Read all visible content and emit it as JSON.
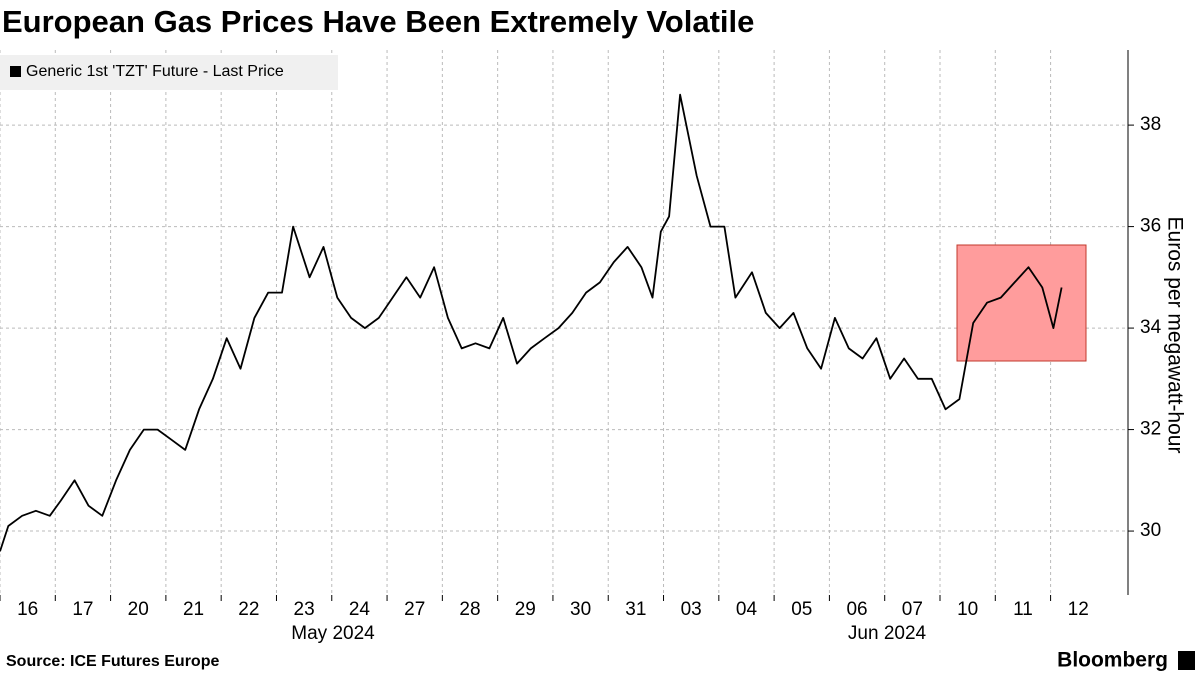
{
  "chart_data": {
    "type": "line",
    "title": "European Gas Prices Have Been Extremely Volatile",
    "y_label": "Euros per megawatt-hour",
    "source": "Source: ICE Futures Europe",
    "brand": "Bloomberg",
    "month_labels": [
      "May 2024",
      "Jun 2024"
    ],
    "xlim": [
      0,
      20.4
    ],
    "xticks": [
      {
        "value": 0,
        "label": "16"
      },
      {
        "value": 1,
        "label": "17"
      },
      {
        "value": 2,
        "label": "20"
      },
      {
        "value": 3,
        "label": "21"
      },
      {
        "value": 4,
        "label": "22"
      },
      {
        "value": 5,
        "label": "23"
      },
      {
        "value": 6,
        "label": "24"
      },
      {
        "value": 7,
        "label": "27"
      },
      {
        "value": 8,
        "label": "28"
      },
      {
        "value": 9,
        "label": "29"
      },
      {
        "value": 10,
        "label": "30"
      },
      {
        "value": 11,
        "label": "31"
      },
      {
        "value": 12,
        "label": "03"
      },
      {
        "value": 13,
        "label": "04"
      },
      {
        "value": 14,
        "label": "05"
      },
      {
        "value": 15,
        "label": "06"
      },
      {
        "value": 16,
        "label": "07"
      },
      {
        "value": 17,
        "label": "10"
      },
      {
        "value": 18,
        "label": "11"
      },
      {
        "value": 19,
        "label": "12"
      }
    ],
    "ylim": [
      28.74,
      39.48
    ],
    "yticks": [
      30,
      32,
      34,
      36,
      38
    ],
    "grid": true,
    "x": [
      0,
      0.15,
      0.4,
      0.65,
      0.9,
      1.1,
      1.35,
      1.6,
      1.85,
      2.1,
      2.35,
      2.6,
      2.85,
      3.1,
      3.35,
      3.6,
      3.85,
      4.1,
      4.35,
      4.6,
      4.85,
      5.1,
      5.3,
      5.6,
      5.85,
      6.1,
      6.35,
      6.6,
      6.85,
      7.1,
      7.35,
      7.6,
      7.85,
      8.1,
      8.35,
      8.6,
      8.85,
      9.1,
      9.35,
      9.6,
      9.85,
      10.1,
      10.35,
      10.6,
      10.85,
      11.1,
      11.35,
      11.6,
      11.8,
      11.95,
      12.1,
      12.3,
      12.6,
      12.85,
      13.1,
      13.3,
      13.6,
      13.85,
      14.1,
      14.35,
      14.6,
      14.85,
      15.1,
      15.35,
      15.6,
      15.85,
      16.1,
      16.35,
      16.6,
      16.85,
      17.1,
      17.35,
      17.6,
      17.85,
      18.1,
      18.35,
      18.6,
      18.85,
      19.05,
      19.2
    ],
    "series": [
      {
        "name": "Generic 1st 'TZT' Future - Last Price",
        "color": "#000000",
        "values": [
          29.6,
          30.1,
          30.3,
          30.4,
          30.3,
          30.6,
          31.0,
          30.5,
          30.3,
          31.0,
          31.6,
          32.0,
          32.0,
          31.8,
          31.6,
          32.4,
          33.0,
          33.8,
          33.2,
          34.2,
          34.7,
          34.7,
          36.0,
          35.0,
          35.6,
          34.6,
          34.2,
          34.0,
          34.2,
          34.6,
          35.0,
          34.6,
          35.2,
          34.2,
          33.6,
          33.7,
          33.6,
          34.2,
          33.3,
          33.6,
          33.8,
          34.0,
          34.3,
          34.7,
          34.9,
          35.3,
          35.6,
          35.2,
          34.6,
          35.9,
          36.2,
          38.6,
          37.0,
          36.0,
          36.0,
          34.6,
          35.1,
          34.3,
          34.0,
          34.3,
          33.6,
          33.2,
          34.2,
          33.6,
          33.4,
          33.8,
          33.0,
          33.4,
          33.0,
          33.0,
          32.4,
          32.6,
          34.1,
          34.5,
          34.6,
          34.9,
          35.2,
          34.8,
          34.0,
          34.8
        ]
      }
    ]
  }
}
